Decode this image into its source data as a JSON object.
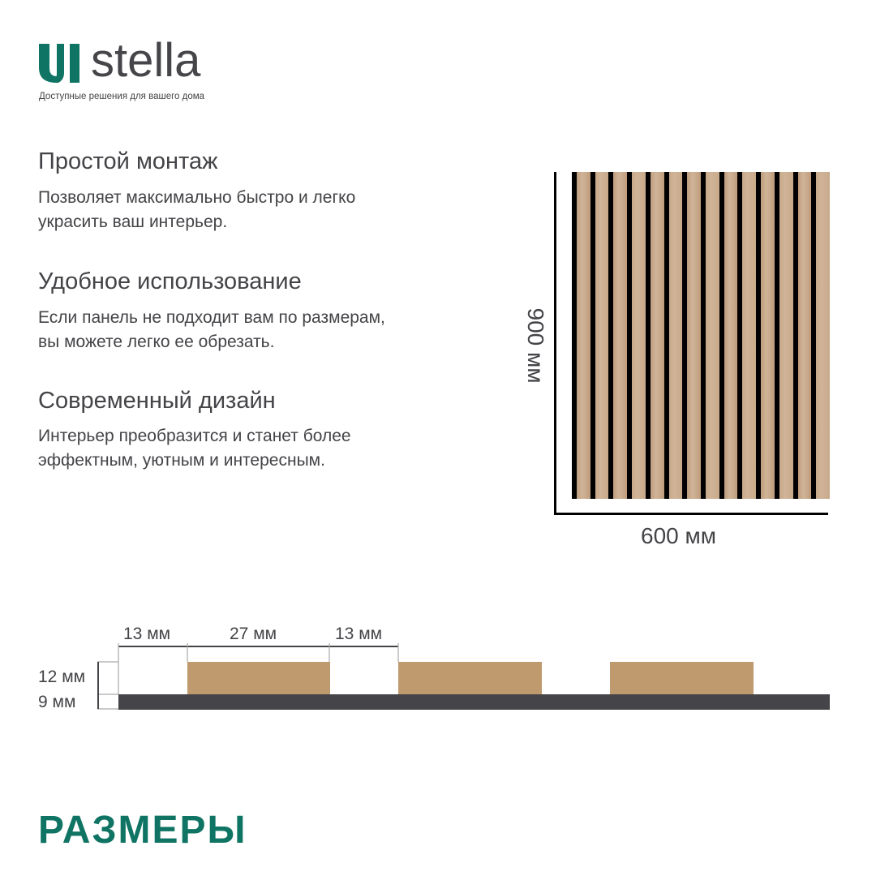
{
  "brand": {
    "name": "stella",
    "tagline": "Доступные решения для вашего дома",
    "color": "#0f7463"
  },
  "features": [
    {
      "title": "Простой монтаж",
      "text_lines": [
        "Позволяет максимально быстро и легко",
        "украсить ваш интерьер."
      ]
    },
    {
      "title": "Удобное использование",
      "text_lines": [
        "Если панель не подходит вам по размерам,",
        "вы можете легко ее обрезать."
      ]
    },
    {
      "title": "Современный дизайн",
      "text_lines": [
        "Интерьер преобразится и станет более",
        "эффектным, уютным и интересным."
      ]
    }
  ],
  "panel": {
    "height_label": "900 мм",
    "width_label": "600 мм",
    "slat_count": 14,
    "wood_color": "#c3a283",
    "gap_color": "#000000"
  },
  "profile": {
    "gap_label_1": "13 мм",
    "slat_width_label": "27 мм",
    "gap_label_2": "13 мм",
    "slat_height_label": "12 мм",
    "base_height_label": "9 мм",
    "slat_color": "#be9a6e",
    "base_color": "#454449"
  },
  "page_title": "РАЗМЕРЫ"
}
